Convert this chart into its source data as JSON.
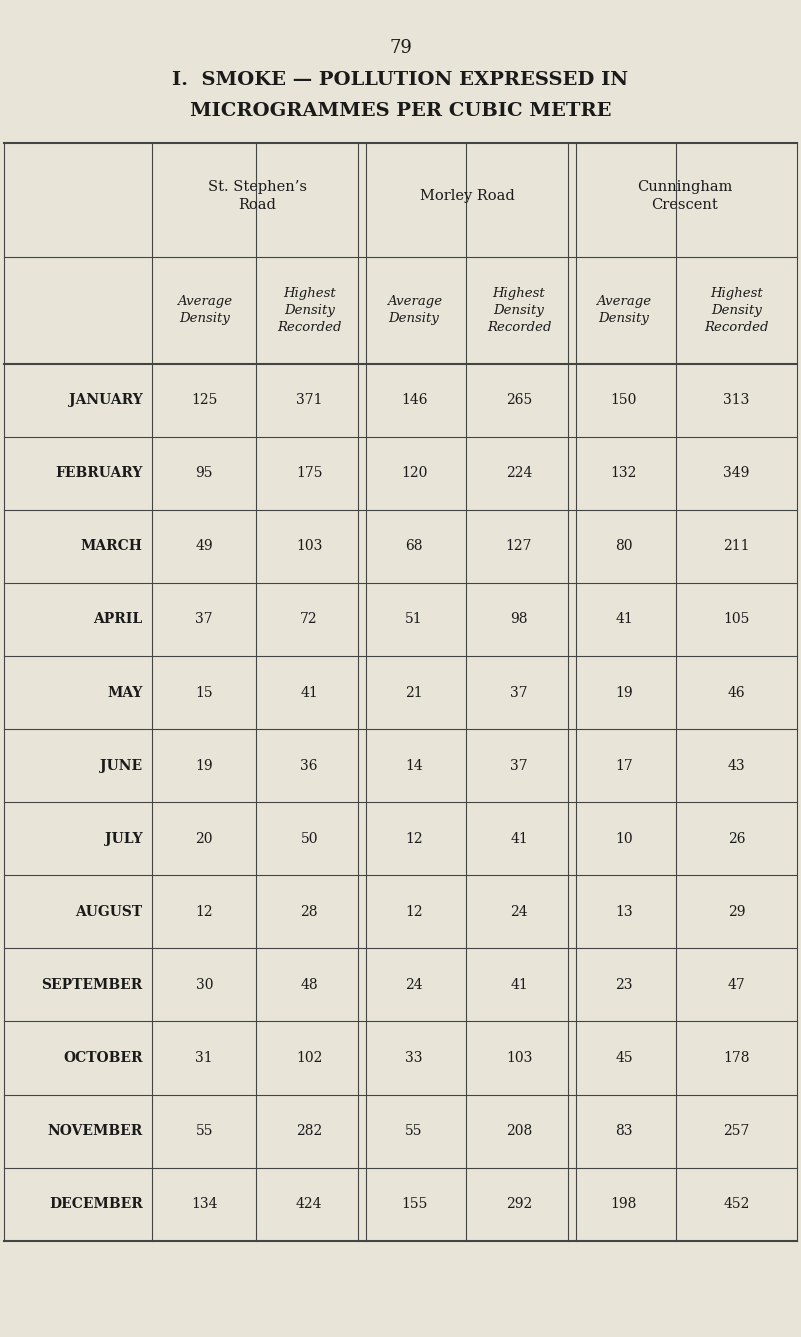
{
  "page_number": "79",
  "title_line1": "I.  SMOKE — POLLUTION EXPRESSED IN",
  "title_line2": "MICROGRAMMES PER CUBIC METRE",
  "bg_color": "#e8e4d8",
  "text_color": "#1a1a1a",
  "col_groups": [
    "St. Stephen’s\nRoad",
    "Morley Road",
    "Cunningham\nCrescent"
  ],
  "months": [
    "JANUARY",
    "FEBRUARY",
    "MARCH",
    "APRIL",
    "MAY",
    "JUNE",
    "JULY",
    "AUGUST",
    "SEPTEMBER",
    "OCTOBER",
    "NOVEMBER",
    "DECEMBER"
  ],
  "data": [
    [
      125,
      371,
      146,
      265,
      150,
      313
    ],
    [
      95,
      175,
      120,
      224,
      132,
      349
    ],
    [
      49,
      103,
      68,
      127,
      80,
      211
    ],
    [
      37,
      72,
      51,
      98,
      41,
      105
    ],
    [
      15,
      41,
      21,
      37,
      19,
      46
    ],
    [
      19,
      36,
      14,
      37,
      17,
      43
    ],
    [
      20,
      50,
      12,
      41,
      10,
      26
    ],
    [
      12,
      28,
      12,
      24,
      13,
      29
    ],
    [
      30,
      48,
      24,
      41,
      23,
      47
    ],
    [
      31,
      102,
      33,
      103,
      45,
      178
    ],
    [
      55,
      282,
      55,
      208,
      83,
      257
    ],
    [
      134,
      424,
      155,
      292,
      198,
      452
    ]
  ]
}
